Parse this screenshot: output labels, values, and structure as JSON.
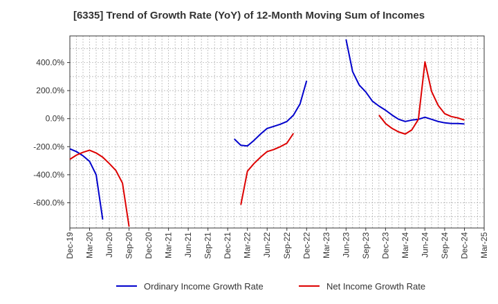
{
  "chart_data": {
    "type": "line",
    "title": "[6335]  Trend of Growth Rate (YoY) of 12-Month Moving Sum of Incomes",
    "xlabel": "",
    "ylabel": "",
    "grid": true,
    "legend_position": "bottom",
    "x_range": [
      "2019-12",
      "2025-03"
    ],
    "ylim": [
      -780,
      590
    ],
    "y_ticks": [
      400,
      200,
      0,
      -200,
      -400,
      -600
    ],
    "y_tick_labels": [
      "400.0%",
      "200.0%",
      "0.0%",
      "-200.0%",
      "-400.0%",
      "-600.0%"
    ],
    "x_ticks": [
      "2019-12",
      "2020-03",
      "2020-06",
      "2020-09",
      "2020-12",
      "2021-03",
      "2021-06",
      "2021-09",
      "2021-12",
      "2022-03",
      "2022-06",
      "2022-09",
      "2022-12",
      "2023-03",
      "2023-06",
      "2023-09",
      "2023-12",
      "2024-03",
      "2024-06",
      "2024-09",
      "2024-12",
      "2025-03"
    ],
    "x_tick_labels": [
      "Dec-19",
      "Mar-20",
      "Jun-20",
      "Sep-20",
      "Dec-20",
      "Mar-21",
      "Jun-21",
      "Sep-21",
      "Dec-21",
      "Mar-22",
      "Jun-22",
      "Sep-22",
      "Dec-22",
      "Mar-23",
      "Jun-23",
      "Sep-23",
      "Dec-23",
      "Mar-24",
      "Jun-24",
      "Sep-24",
      "Dec-24",
      "Mar-25"
    ],
    "series": [
      {
        "name": "Ordinary Income Growth Rate",
        "color": "#0000cc",
        "points": [
          [
            "2019-12",
            -215
          ],
          [
            "2020-01",
            -235
          ],
          [
            "2020-02",
            -265
          ],
          [
            "2020-03",
            -305
          ],
          [
            "2020-04",
            -400
          ],
          [
            "2020-05",
            -720
          ],
          [
            "2022-01",
            -145
          ],
          [
            "2022-02",
            -190
          ],
          [
            "2022-03",
            -195
          ],
          [
            "2022-04",
            -155
          ],
          [
            "2022-05",
            -110
          ],
          [
            "2022-06",
            -70
          ],
          [
            "2022-07",
            -55
          ],
          [
            "2022-08",
            -40
          ],
          [
            "2022-09",
            -20
          ],
          [
            "2022-10",
            25
          ],
          [
            "2022-11",
            105
          ],
          [
            "2022-12",
            270
          ],
          [
            "2023-06",
            565
          ],
          [
            "2023-07",
            335
          ],
          [
            "2023-08",
            240
          ],
          [
            "2023-09",
            190
          ],
          [
            "2023-10",
            125
          ],
          [
            "2023-11",
            90
          ],
          [
            "2023-12",
            60
          ],
          [
            "2024-01",
            25
          ],
          [
            "2024-02",
            -5
          ],
          [
            "2024-03",
            -20
          ],
          [
            "2024-04",
            -10
          ],
          [
            "2024-05",
            -5
          ],
          [
            "2024-06",
            10
          ],
          [
            "2024-07",
            -5
          ],
          [
            "2024-08",
            -20
          ],
          [
            "2024-09",
            -30
          ],
          [
            "2024-10",
            -35
          ],
          [
            "2024-11",
            -35
          ],
          [
            "2024-12",
            -38
          ]
        ]
      },
      {
        "name": "Net Income Growth Rate",
        "color": "#dd0000",
        "points": [
          [
            "2019-12",
            -290
          ],
          [
            "2020-01",
            -260
          ],
          [
            "2020-02",
            -240
          ],
          [
            "2020-03",
            -225
          ],
          [
            "2020-04",
            -245
          ],
          [
            "2020-05",
            -275
          ],
          [
            "2020-06",
            -320
          ],
          [
            "2020-07",
            -370
          ],
          [
            "2020-08",
            -460
          ],
          [
            "2020-09",
            -770
          ],
          [
            "2022-02",
            -615
          ],
          [
            "2022-03",
            -375
          ],
          [
            "2022-04",
            -320
          ],
          [
            "2022-05",
            -275
          ],
          [
            "2022-06",
            -235
          ],
          [
            "2022-07",
            -220
          ],
          [
            "2022-08",
            -200
          ],
          [
            "2022-09",
            -175
          ],
          [
            "2022-10",
            -105
          ],
          [
            "2023-11",
            25
          ],
          [
            "2023-12",
            -35
          ],
          [
            "2024-01",
            -70
          ],
          [
            "2024-02",
            -95
          ],
          [
            "2024-03",
            -110
          ],
          [
            "2024-04",
            -80
          ],
          [
            "2024-05",
            -5
          ],
          [
            "2024-06",
            405
          ],
          [
            "2024-07",
            195
          ],
          [
            "2024-08",
            95
          ],
          [
            "2024-09",
            35
          ],
          [
            "2024-10",
            15
          ],
          [
            "2024-11",
            5
          ],
          [
            "2024-12",
            -10
          ]
        ]
      }
    ]
  }
}
